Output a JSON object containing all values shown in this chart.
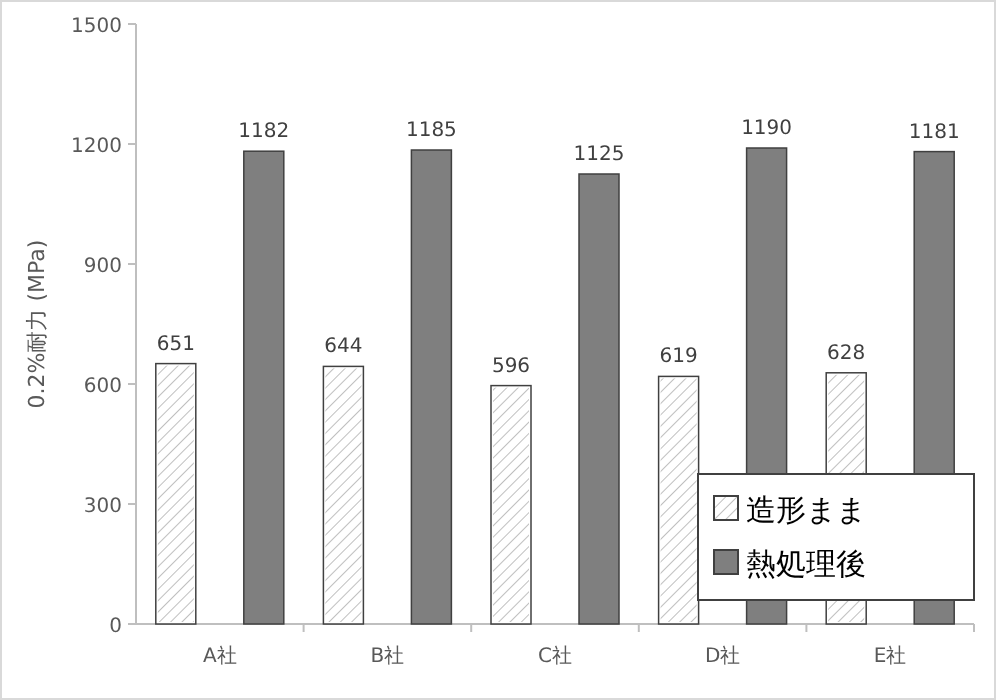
{
  "chart_data": {
    "type": "bar",
    "ylabel": "0.2%耐力 (MPa)",
    "categories": [
      "A社",
      "B社",
      "C社",
      "D社",
      "E社"
    ],
    "series": [
      {
        "name": "造形まま",
        "color": "#ffffff",
        "values": [
          651,
          644,
          596,
          619,
          628
        ]
      },
      {
        "name": "熱処理後",
        "color": "#7f7f7f",
        "values": [
          1182,
          1185,
          1125,
          1190,
          1181
        ]
      }
    ],
    "ylim": [
      0,
      1500
    ],
    "yticks": [
      0,
      300,
      600,
      900,
      1200,
      1500
    ],
    "data_labels": true,
    "legend": "bottom right",
    "grid": false
  }
}
